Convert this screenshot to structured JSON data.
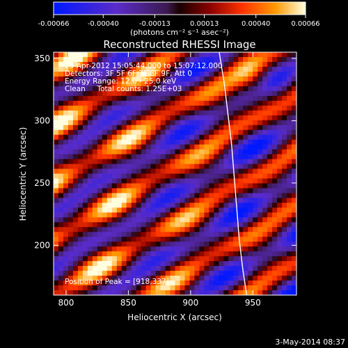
{
  "chart_data": {
    "type": "heatmap",
    "title": "Reconstructed RHESSI Image",
    "xlabel": "Heliocentric X (arcsec)",
    "ylabel": "Heliocentric Y (arcsec)",
    "xlim": [
      790,
      985
    ],
    "ylim": [
      160,
      355
    ],
    "xticks": [
      800,
      850,
      900,
      950
    ],
    "yticks": [
      200,
      250,
      300,
      350
    ],
    "colorbar": {
      "range": [
        -0.00066,
        0.00066
      ],
      "tick_values": [
        -0.00066,
        -0.0004,
        -0.00013,
        0.00013,
        0.0004,
        0.00066
      ],
      "tick_labels": [
        "-0.00066",
        "-0.00040",
        "-0.00013",
        "0.00013",
        "0.00040",
        "0.00066"
      ],
      "label": "(photons cm⁻² s⁻¹ asec⁻²)"
    },
    "annotations": [
      "25-Apr-2012 15:05:44.000 to 15:07:12.000",
      "Detectors: 3F 5F 6F 7F 8F 9F, Att 0",
      "Energy Range: 12.0 - 25.0 keV",
      "Clean     Total counts: 1.25E+03"
    ],
    "peak_label": "Position of Peak = [918,337]",
    "peak": [
      918,
      337
    ],
    "limb_curve": [
      [
        923,
        355
      ],
      [
        927,
        330
      ],
      [
        930,
        305
      ],
      [
        933,
        280
      ],
      [
        935,
        255
      ],
      [
        937,
        230
      ],
      [
        939,
        205
      ],
      [
        942,
        180
      ],
      [
        945,
        160
      ]
    ]
  },
  "footer": "3-May-2014 08:37"
}
